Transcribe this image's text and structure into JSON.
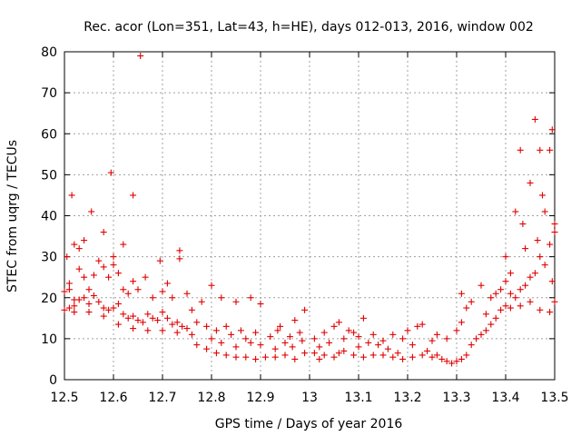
{
  "chart_data": {
    "type": "scatter",
    "title": "Rec. acor (Lon=351, Lat=43, h=HE), days 012-013, 2016, window 002",
    "xlabel": "GPS time / Days of year 2016",
    "ylabel": "STEC from uqrg / TECUs",
    "xlim": [
      12.5,
      13.5
    ],
    "ylim": [
      0,
      80
    ],
    "xticks": [
      "12.5",
      "12.6",
      "12.7",
      "12.8",
      "12.9",
      "13",
      "13.1",
      "13.2",
      "13.3",
      "13.4",
      "13.5"
    ],
    "yticks": [
      "0",
      "10",
      "20",
      "30",
      "40",
      "50",
      "60",
      "70",
      "80"
    ],
    "grid": true,
    "marker": "plus",
    "color": "#e00000",
    "series": [
      {
        "name": "STEC",
        "points": [
          [
            12.505,
            30.0
          ],
          [
            12.51,
            22.0
          ],
          [
            12.515,
            45.0
          ],
          [
            12.52,
            33.0
          ],
          [
            12.53,
            32.0
          ],
          [
            12.54,
            34.0
          ],
          [
            12.555,
            41.0
          ],
          [
            12.58,
            36.0
          ],
          [
            12.595,
            50.5
          ],
          [
            12.6,
            30.0
          ],
          [
            12.62,
            33.0
          ],
          [
            12.64,
            45.0
          ],
          [
            12.655,
            79.0
          ],
          [
            12.695,
            29.0
          ],
          [
            12.735,
            31.5
          ],
          [
            12.5,
            21.5
          ],
          [
            12.51,
            23.5
          ],
          [
            12.52,
            19.5
          ],
          [
            12.53,
            27.0
          ],
          [
            12.54,
            25.0
          ],
          [
            12.55,
            22.0
          ],
          [
            12.56,
            25.5
          ],
          [
            12.57,
            29.0
          ],
          [
            12.58,
            27.5
          ],
          [
            12.59,
            25.0
          ],
          [
            12.6,
            28.0
          ],
          [
            12.61,
            26.0
          ],
          [
            12.62,
            22.0
          ],
          [
            12.63,
            21.0
          ],
          [
            12.64,
            24.0
          ],
          [
            12.65,
            22.0
          ],
          [
            12.665,
            25.0
          ],
          [
            12.68,
            20.0
          ],
          [
            12.7,
            21.5
          ],
          [
            12.71,
            23.5
          ],
          [
            12.72,
            20.0
          ],
          [
            12.735,
            29.5
          ],
          [
            12.75,
            21.0
          ],
          [
            12.5,
            17.0
          ],
          [
            12.51,
            17.5
          ],
          [
            12.52,
            18.0
          ],
          [
            12.53,
            19.5
          ],
          [
            12.54,
            20.0
          ],
          [
            12.55,
            18.5
          ],
          [
            12.56,
            20.5
          ],
          [
            12.57,
            19.0
          ],
          [
            12.58,
            17.5
          ],
          [
            12.59,
            17.0
          ],
          [
            12.6,
            17.5
          ],
          [
            12.61,
            18.5
          ],
          [
            12.62,
            16.0
          ],
          [
            12.63,
            15.0
          ],
          [
            12.64,
            15.5
          ],
          [
            12.65,
            14.5
          ],
          [
            12.66,
            14.0
          ],
          [
            12.67,
            16.0
          ],
          [
            12.68,
            15.0
          ],
          [
            12.69,
            14.5
          ],
          [
            12.7,
            16.5
          ],
          [
            12.71,
            15.0
          ],
          [
            12.72,
            13.5
          ],
          [
            12.73,
            14.0
          ],
          [
            12.74,
            13.0
          ],
          [
            12.75,
            12.5
          ],
          [
            12.52,
            16.5
          ],
          [
            12.55,
            16.5
          ],
          [
            12.58,
            15.5
          ],
          [
            12.61,
            13.5
          ],
          [
            12.64,
            12.5
          ],
          [
            12.67,
            12.0
          ],
          [
            12.7,
            12.0
          ],
          [
            12.73,
            11.5
          ],
          [
            12.76,
            11.0
          ],
          [
            12.76,
            17.0
          ],
          [
            12.77,
            14.0
          ],
          [
            12.78,
            19.0
          ],
          [
            12.79,
            13.0
          ],
          [
            12.8,
            10.0
          ],
          [
            12.81,
            12.0
          ],
          [
            12.82,
            9.0
          ],
          [
            12.83,
            13.0
          ],
          [
            12.84,
            11.0
          ],
          [
            12.85,
            8.0
          ],
          [
            12.86,
            12.0
          ],
          [
            12.87,
            10.0
          ],
          [
            12.88,
            9.0
          ],
          [
            12.89,
            11.5
          ],
          [
            12.9,
            8.5
          ],
          [
            12.77,
            8.5
          ],
          [
            12.79,
            7.5
          ],
          [
            12.81,
            6.5
          ],
          [
            12.83,
            6.0
          ],
          [
            12.85,
            5.5
          ],
          [
            12.87,
            5.5
          ],
          [
            12.89,
            5.0
          ],
          [
            12.91,
            5.5
          ],
          [
            12.8,
            23.0
          ],
          [
            12.82,
            20.0
          ],
          [
            12.85,
            19.0
          ],
          [
            12.88,
            20.0
          ],
          [
            12.9,
            18.5
          ],
          [
            12.92,
            10.5
          ],
          [
            12.93,
            7.5
          ],
          [
            12.94,
            13.0
          ],
          [
            12.95,
            9.0
          ],
          [
            12.96,
            10.5
          ],
          [
            12.97,
            14.5
          ],
          [
            12.98,
            11.5
          ],
          [
            12.99,
            17.0
          ],
          [
            12.93,
            5.5
          ],
          [
            12.95,
            6.0
          ],
          [
            12.97,
            5.0
          ],
          [
            12.99,
            6.5
          ],
          [
            12.935,
            12.0
          ],
          [
            12.965,
            8.0
          ],
          [
            12.985,
            9.5
          ],
          [
            13.01,
            10.0
          ],
          [
            13.02,
            8.0
          ],
          [
            13.03,
            11.5
          ],
          [
            13.04,
            9.0
          ],
          [
            13.05,
            13.0
          ],
          [
            13.06,
            14.0
          ],
          [
            13.07,
            10.0
          ],
          [
            13.08,
            12.0
          ],
          [
            13.09,
            11.5
          ],
          [
            13.1,
            10.5
          ],
          [
            13.11,
            15.0
          ],
          [
            13.12,
            9.0
          ],
          [
            13.01,
            6.5
          ],
          [
            13.03,
            6.0
          ],
          [
            13.05,
            5.5
          ],
          [
            13.07,
            7.0
          ],
          [
            13.09,
            6.0
          ],
          [
            13.11,
            5.5
          ],
          [
            13.13,
            6.0
          ],
          [
            13.02,
            5.0
          ],
          [
            13.06,
            6.5
          ],
          [
            13.1,
            8.0
          ],
          [
            13.13,
            11.0
          ],
          [
            13.14,
            8.5
          ],
          [
            13.15,
            9.5
          ],
          [
            13.16,
            7.5
          ],
          [
            13.17,
            11.0
          ],
          [
            13.18,
            6.5
          ],
          [
            13.19,
            10.0
          ],
          [
            13.2,
            12.0
          ],
          [
            13.21,
            8.5
          ],
          [
            13.22,
            13.0
          ],
          [
            13.23,
            13.5
          ],
          [
            13.24,
            7.0
          ],
          [
            13.15,
            6.0
          ],
          [
            13.17,
            5.5
          ],
          [
            13.19,
            5.0
          ],
          [
            13.21,
            5.5
          ],
          [
            13.23,
            6.0
          ],
          [
            13.25,
            5.5
          ],
          [
            13.25,
            9.5
          ],
          [
            13.26,
            6.0
          ],
          [
            13.27,
            5.0
          ],
          [
            13.28,
            4.5
          ],
          [
            13.29,
            4.0
          ],
          [
            13.3,
            4.5
          ],
          [
            13.31,
            5.0
          ],
          [
            13.32,
            6.0
          ],
          [
            13.26,
            11.0
          ],
          [
            13.28,
            10.0
          ],
          [
            13.3,
            12.0
          ],
          [
            13.31,
            14.0
          ],
          [
            13.33,
            8.5
          ],
          [
            13.34,
            10.0
          ],
          [
            13.35,
            11.0
          ],
          [
            13.32,
            17.5
          ],
          [
            13.31,
            21.0
          ],
          [
            13.33,
            19.0
          ],
          [
            13.35,
            23.0
          ],
          [
            13.36,
            16.0
          ],
          [
            13.37,
            20.0
          ],
          [
            13.38,
            21.0
          ],
          [
            13.39,
            22.0
          ],
          [
            13.4,
            24.0
          ],
          [
            13.36,
            12.0
          ],
          [
            13.37,
            13.5
          ],
          [
            13.38,
            15.0
          ],
          [
            13.39,
            17.0
          ],
          [
            13.4,
            18.0
          ],
          [
            13.41,
            21.0
          ],
          [
            13.42,
            20.0
          ],
          [
            13.43,
            22.0
          ],
          [
            13.44,
            23.0
          ],
          [
            13.45,
            25.0
          ],
          [
            13.46,
            26.0
          ],
          [
            13.47,
            30.0
          ],
          [
            13.48,
            28.0
          ],
          [
            13.49,
            33.0
          ],
          [
            13.5,
            38.0
          ],
          [
            13.41,
            17.5
          ],
          [
            13.43,
            18.0
          ],
          [
            13.45,
            19.0
          ],
          [
            13.47,
            17.0
          ],
          [
            13.49,
            16.5
          ],
          [
            13.5,
            19.0
          ],
          [
            13.4,
            30.0
          ],
          [
            13.41,
            26.0
          ],
          [
            13.42,
            41.0
          ],
          [
            13.43,
            56.0
          ],
          [
            13.435,
            38.0
          ],
          [
            13.44,
            32.0
          ],
          [
            13.45,
            48.0
          ],
          [
            13.46,
            63.5
          ],
          [
            13.465,
            34.0
          ],
          [
            13.47,
            56.0
          ],
          [
            13.475,
            45.0
          ],
          [
            13.48,
            41.0
          ],
          [
            13.49,
            56.0
          ],
          [
            13.495,
            61.0
          ],
          [
            13.5,
            36.0
          ],
          [
            13.495,
            24.0
          ]
        ]
      }
    ]
  }
}
